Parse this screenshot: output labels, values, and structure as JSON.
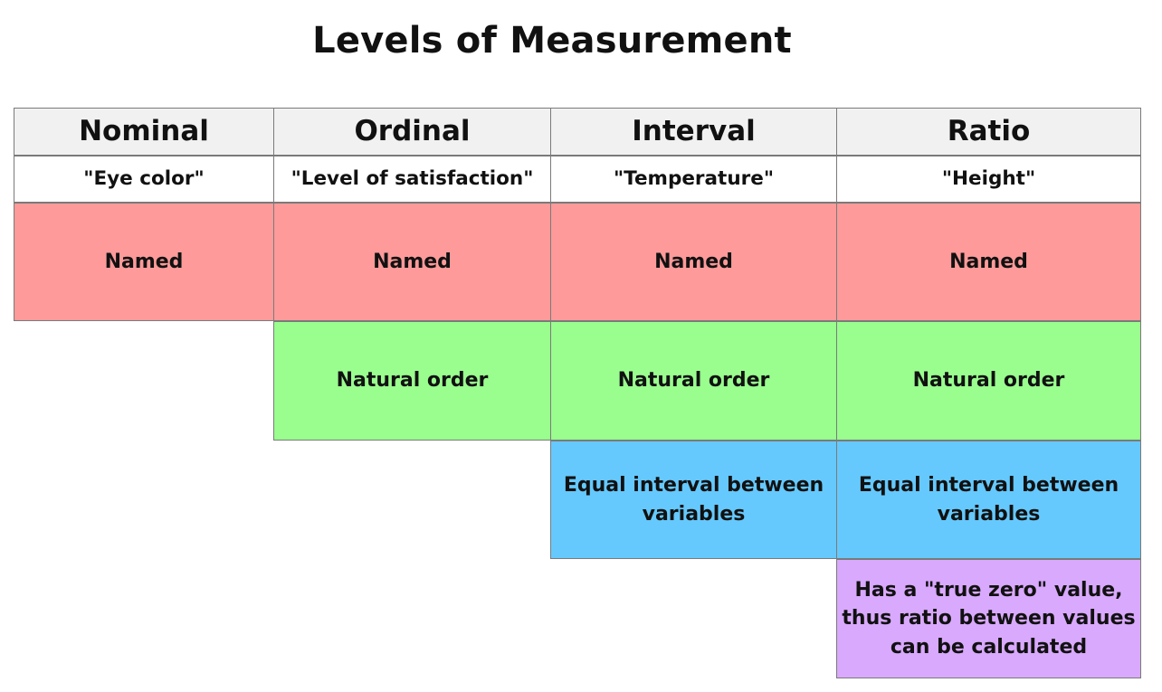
{
  "title": "Levels of Measurement",
  "columns": [
    {
      "label": "Nominal",
      "example": "\"Eye color\""
    },
    {
      "label": "Ordinal",
      "example": "\"Level of satisfaction\""
    },
    {
      "label": "Interval",
      "example": "\"Temperature\""
    },
    {
      "label": "Ratio",
      "example": "\"Height\""
    }
  ],
  "properties": {
    "named": "Named",
    "natural_order": "Natural order",
    "equal_interval": "Equal interval between variables",
    "true_zero": "Has a \"true zero\" value, thus ratio between values can be calculated"
  },
  "colors": {
    "header_bg": "#f1f1f1",
    "named": "#fe9a9a",
    "natural_order": "#9afe8f",
    "equal_interval": "#65c9fd",
    "true_zero": "#d9a9fd",
    "border": "#7a7a7a"
  }
}
